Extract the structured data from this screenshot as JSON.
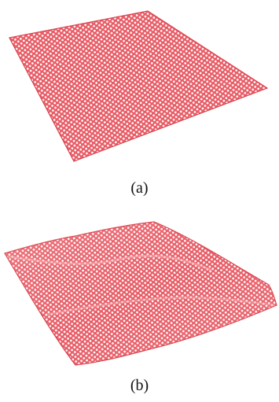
{
  "figure": {
    "panels": [
      {
        "label": "(a)",
        "description_state": "flat"
      },
      {
        "label": "(b)",
        "description_state": "rippled"
      }
    ],
    "colors": {
      "lattice_fill": "#f08a8f",
      "lattice_stroke": "#d9434d",
      "hole": "#ffffff"
    }
  }
}
